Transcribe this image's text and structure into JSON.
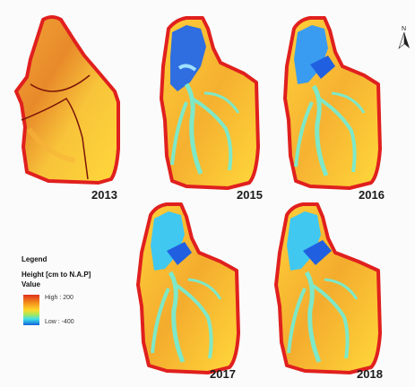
{
  "panels": [
    {
      "id": "p2013",
      "year": "2013"
    },
    {
      "id": "p2015",
      "year": "2015"
    },
    {
      "id": "p2016",
      "year": "2016"
    },
    {
      "id": "p2017",
      "year": "2017"
    },
    {
      "id": "p2018",
      "year": "2018"
    }
  ],
  "legend": {
    "title": "Legend",
    "layer": "Height [cm to N.A.P]",
    "value_label": "Value",
    "high_label": "High : 200",
    "low_label": "Low : -400",
    "high_value": 200,
    "low_value": -400
  },
  "north_arrow": {
    "label": "N",
    "icon": "north-arrow-icon"
  },
  "colors": {
    "boundary": "#e0201e",
    "high": "#e0301e",
    "mid": "#ffd82a",
    "channel": "#7ee8c8",
    "low": "#1060d8",
    "water": "#3a9cf0"
  }
}
